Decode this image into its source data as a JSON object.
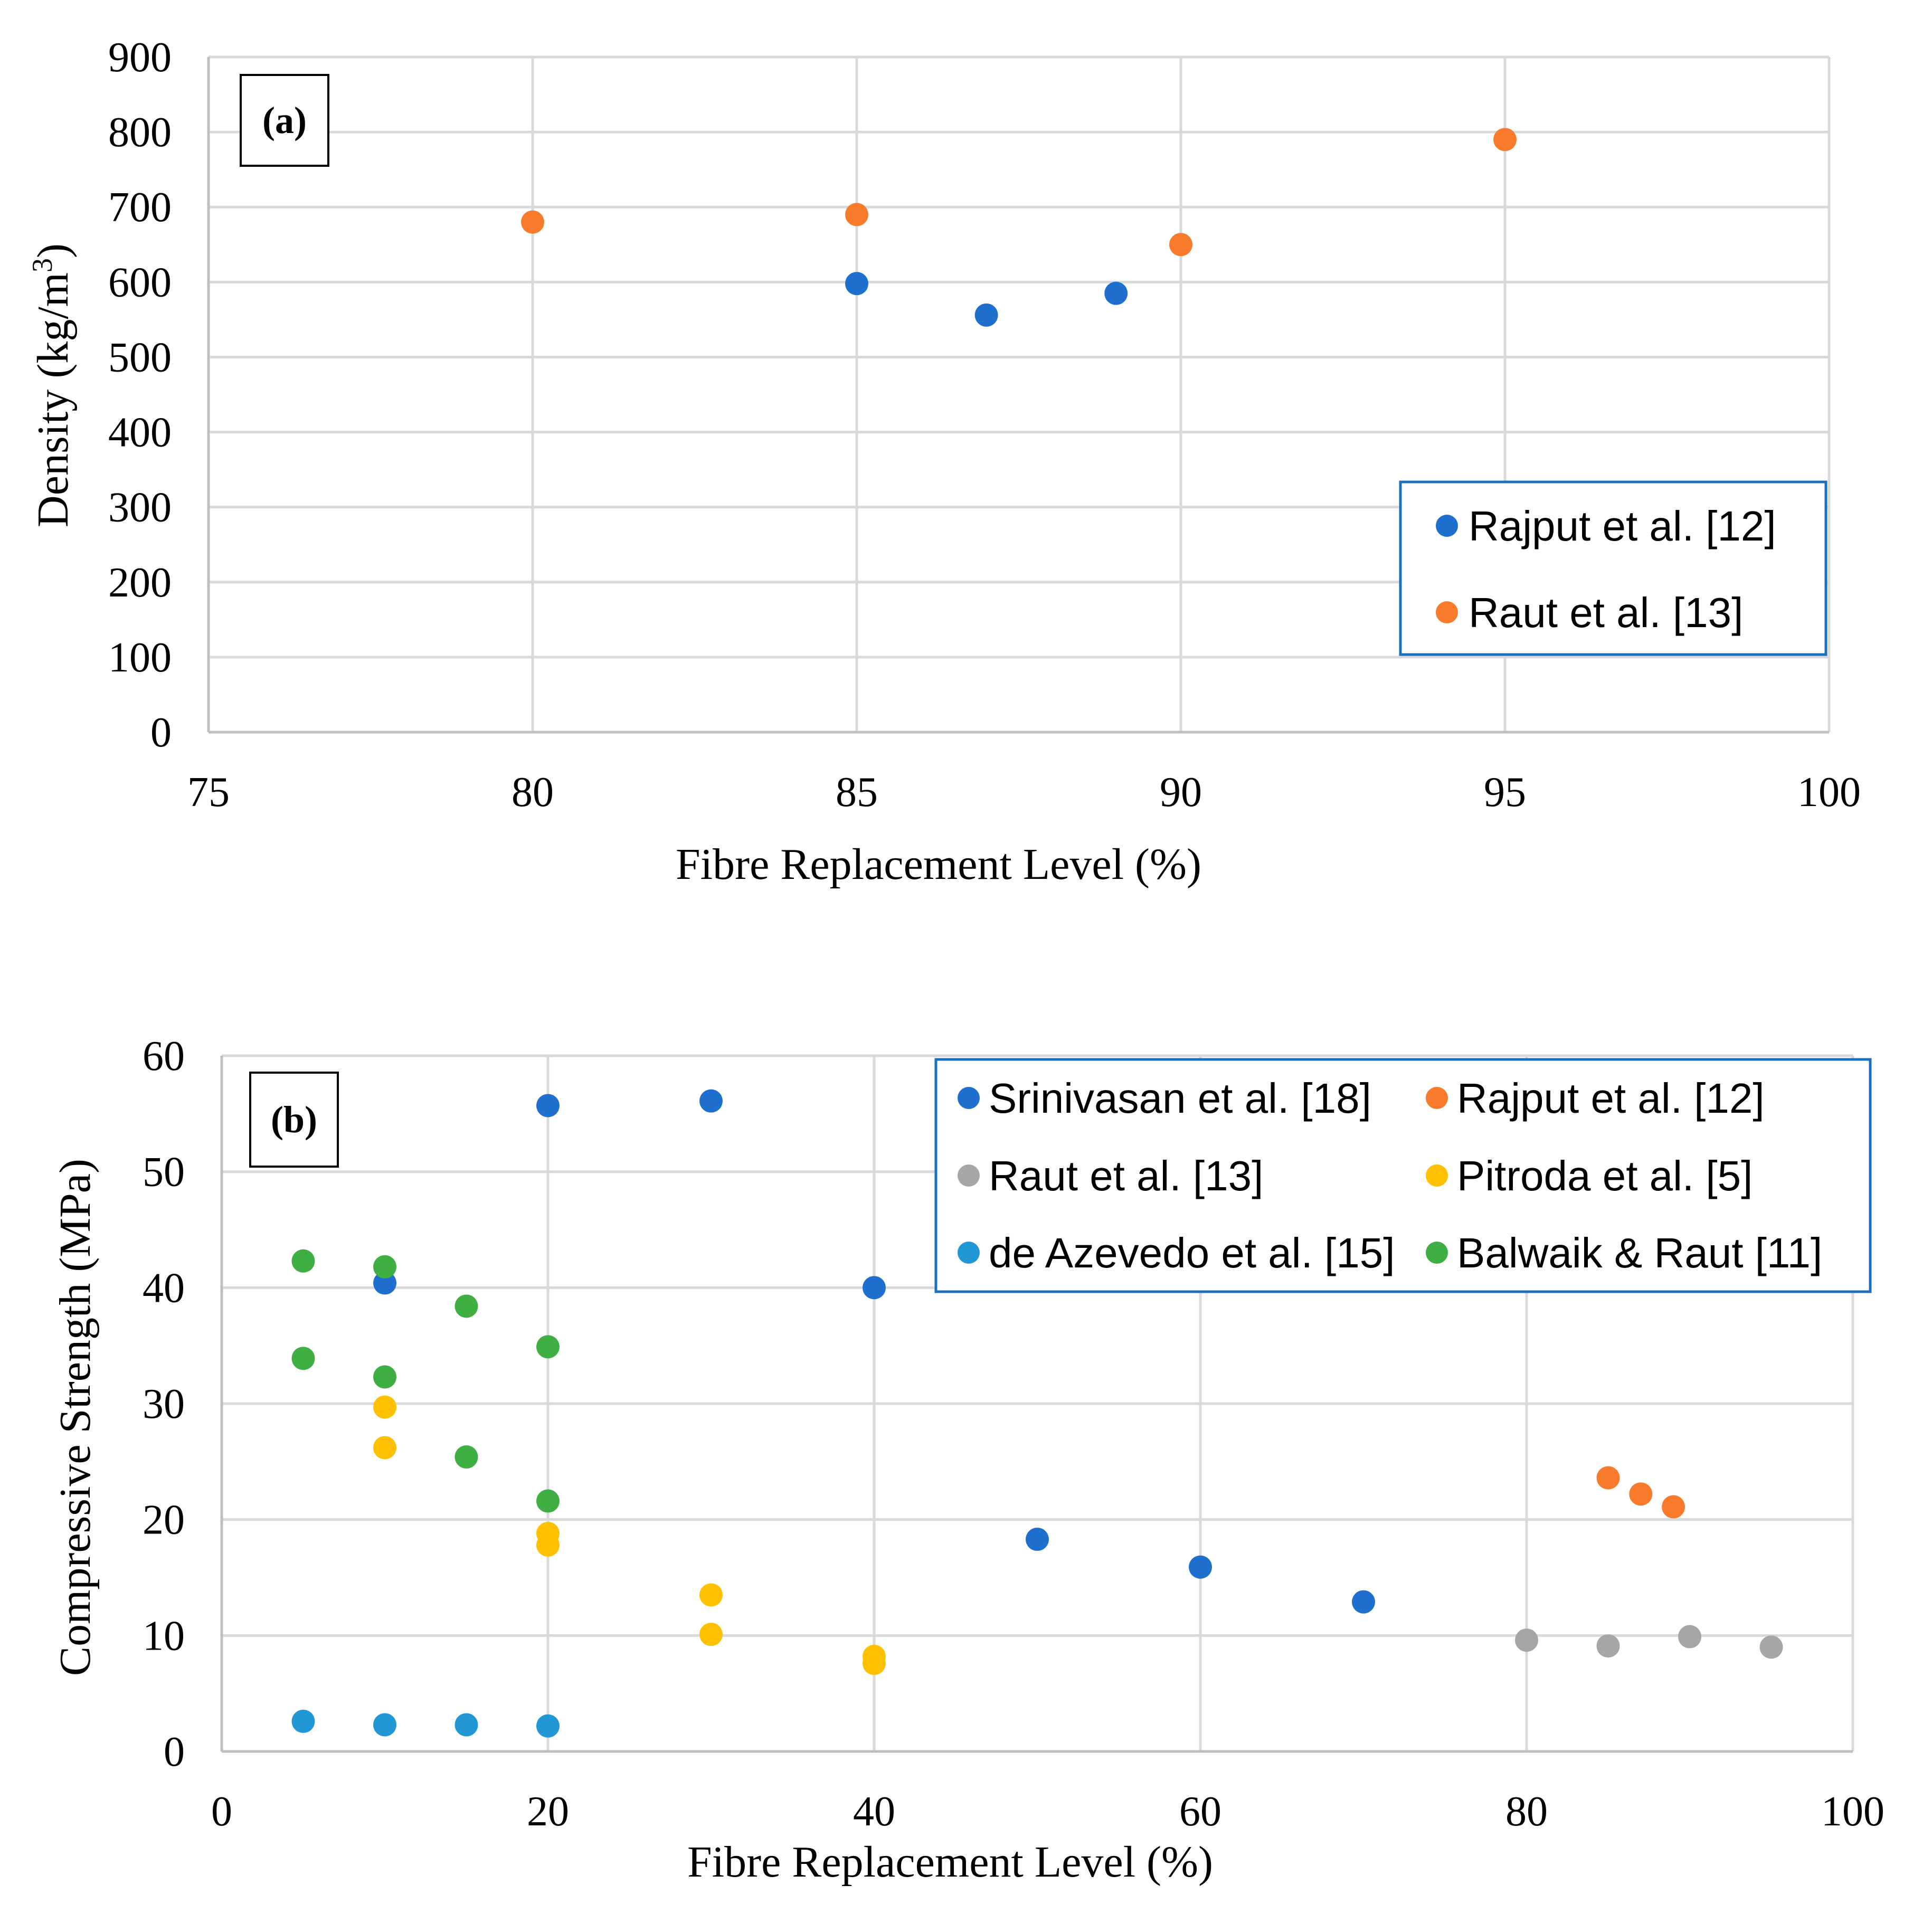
{
  "colors": {
    "grid": "#d9d9d9",
    "axis": "#bfbfbf",
    "legend_border": "#1f6fbf",
    "blue": "#1f6fcf",
    "orange": "#f77b2b",
    "gray": "#a6a6a6",
    "yellow": "#ffc000",
    "lightblue": "#2197d6",
    "green": "#3fae43"
  },
  "chart_data": [
    {
      "id": "a",
      "type": "scatter",
      "panel_label": "(a)",
      "xlabel": "Fibre Replacement Level (%)",
      "ylabel_main": "Density (kg/m",
      "ylabel_sup": "3",
      "ylabel_close": ")",
      "xlim": [
        75,
        100
      ],
      "ylim": [
        0,
        900
      ],
      "xticks": [
        75,
        80,
        85,
        90,
        95,
        100
      ],
      "yticks": [
        0,
        100,
        200,
        300,
        400,
        500,
        600,
        700,
        800,
        900
      ],
      "grid": true,
      "legend_position": "bottom-right",
      "series": [
        {
          "name": "Rajput et al. [12]",
          "color_key": "blue",
          "points": [
            [
              85,
              598
            ],
            [
              87,
              556
            ],
            [
              89,
              585
            ]
          ]
        },
        {
          "name": "Raut  et al. [13]",
          "color_key": "orange",
          "points": [
            [
              80,
              680
            ],
            [
              85,
              690
            ],
            [
              90,
              650
            ],
            [
              95,
              790
            ]
          ]
        }
      ]
    },
    {
      "id": "b",
      "type": "scatter",
      "panel_label": "(b)",
      "xlabel": "Fibre Replacement Level (%)",
      "ylabel": "Compressive Strength (MPa)",
      "xlim": [
        0,
        100
      ],
      "ylim": [
        0,
        60
      ],
      "xticks": [
        0,
        20,
        40,
        60,
        80,
        100
      ],
      "yticks": [
        0,
        10,
        20,
        30,
        40,
        50,
        60
      ],
      "grid": true,
      "legend_position": "top-right",
      "series": [
        {
          "name": "Srinivasan et al. [18]",
          "color_key": "blue",
          "points": [
            [
              10,
              40.4
            ],
            [
              20,
              55.7
            ],
            [
              30,
              56.1
            ],
            [
              40,
              40.0
            ],
            [
              50,
              18.3
            ],
            [
              60,
              15.9
            ],
            [
              70,
              12.9
            ]
          ]
        },
        {
          "name": "Rajput  et al. [12]",
          "color_key": "orange",
          "points": [
            [
              85,
              23.6
            ],
            [
              87,
              22.2
            ],
            [
              89,
              21.1
            ]
          ]
        },
        {
          "name": "Raut et al. [13]",
          "color_key": "gray",
          "points": [
            [
              80,
              9.6
            ],
            [
              85,
              9.1
            ],
            [
              90,
              9.9
            ],
            [
              95,
              9.0
            ]
          ]
        },
        {
          "name": "Pitroda et al. [5]",
          "color_key": "yellow",
          "points": [
            [
              10,
              29.7
            ],
            [
              10,
              26.2
            ],
            [
              20,
              18.8
            ],
            [
              20,
              17.8
            ],
            [
              30,
              13.5
            ],
            [
              30,
              10.1
            ],
            [
              40,
              8.2
            ],
            [
              40,
              7.6
            ]
          ]
        },
        {
          "name": "de Azevedo et al. [15]",
          "color_key": "lightblue",
          "points": [
            [
              5,
              2.6
            ],
            [
              10,
              2.3
            ],
            [
              15,
              2.3
            ],
            [
              20,
              2.2
            ]
          ]
        },
        {
          "name": "Balwaik & Raut [11]",
          "color_key": "green",
          "points": [
            [
              5,
              42.3
            ],
            [
              5,
              33.9
            ],
            [
              10,
              41.8
            ],
            [
              10,
              32.3
            ],
            [
              15,
              38.4
            ],
            [
              15,
              25.4
            ],
            [
              20,
              34.9
            ],
            [
              20,
              21.6
            ]
          ]
        }
      ]
    }
  ]
}
